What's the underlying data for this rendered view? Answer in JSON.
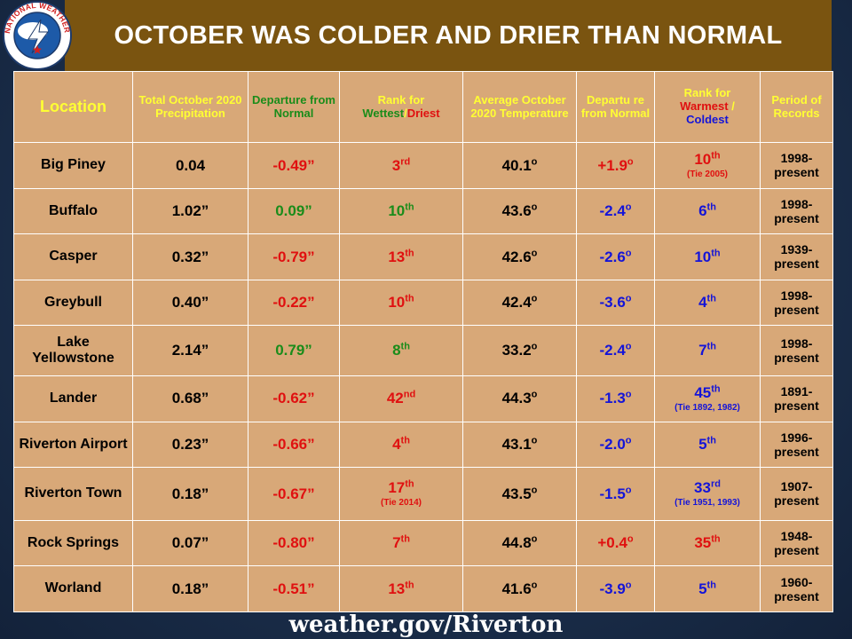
{
  "title": "OCTOBER WAS COLDER AND DRIER THAN NORMAL",
  "logo": {
    "icon": "nws-logo-icon",
    "ring_text": "NATIONAL WEATHER SERVICE",
    "colors": {
      "ring": "#ffffff",
      "inner": "#1d5aa8",
      "bolt": "#ffffff"
    }
  },
  "headers": {
    "location": "Location",
    "precip": "Total October 2020 Precipitation",
    "precip_departure": "Departure from Normal",
    "rank_precip_prefix": "Rank for",
    "rank_precip_wet": "Wettest",
    "rank_precip_sep": "/",
    "rank_precip_dry": "Driest",
    "avg_temp": "Average October 2020 Temperature",
    "temp_departure": "Departu re from Normal",
    "rank_temp_prefix": "Rank for",
    "rank_temp_warm": "Warmest",
    "rank_temp_sep": " /",
    "rank_temp_cold": "Coldest",
    "period": "Period of Records"
  },
  "rows": [
    {
      "location": "Big Piney",
      "precip": "0.04",
      "precip_dep": "-0.49”",
      "rp_num": "3",
      "rp_suf": "rd",
      "rp_tie": "",
      "temp": "40.1",
      "temp_dep": "+1.9",
      "rt_num": "10",
      "rt_suf": "th",
      "rt_tie": "(Tie 2005)",
      "period": "1998-present"
    },
    {
      "location": "Buffalo",
      "precip": "1.02”",
      "precip_dep": "0.09”",
      "rp_num": "10",
      "rp_suf": "th",
      "rp_tie": "",
      "temp": "43.6",
      "temp_dep": "-2.4",
      "rt_num": "6",
      "rt_suf": "th",
      "rt_tie": "",
      "period": "1998-present"
    },
    {
      "location": "Casper",
      "precip": "0.32”",
      "precip_dep": "-0.79”",
      "rp_num": "13",
      "rp_suf": "th",
      "rp_tie": "",
      "temp": "42.6",
      "temp_dep": "-2.6",
      "rt_num": "10",
      "rt_suf": "th",
      "rt_tie": "",
      "period": "1939-present"
    },
    {
      "location": "Greybull",
      "precip": "0.40”",
      "precip_dep": "-0.22”",
      "rp_num": "10",
      "rp_suf": "th",
      "rp_tie": "",
      "temp": "42.4",
      "temp_dep": "-3.6",
      "rt_num": "4",
      "rt_suf": "th",
      "rt_tie": "",
      "period": "1998-present"
    },
    {
      "location": "Lake Yellowstone",
      "precip": "2.14”",
      "precip_dep": "0.79”",
      "rp_num": "8",
      "rp_suf": "th",
      "rp_tie": "",
      "temp": "33.2",
      "temp_dep": "-2.4",
      "rt_num": "7",
      "rt_suf": "th",
      "rt_tie": "",
      "period": "1998-present"
    },
    {
      "location": "Lander",
      "precip": "0.68”",
      "precip_dep": "-0.62”",
      "rp_num": "42",
      "rp_suf": "nd",
      "rp_tie": "",
      "temp": "44.3",
      "temp_dep": "-1.3",
      "rt_num": "45",
      "rt_suf": "th",
      "rt_tie": "(Tie 1892, 1982)",
      "period": "1891-present"
    },
    {
      "location": "Riverton Airport",
      "precip": "0.23”",
      "precip_dep": "-0.66”",
      "rp_num": "4",
      "rp_suf": "th",
      "rp_tie": "",
      "temp": "43.1",
      "temp_dep": "-2.0",
      "rt_num": "5",
      "rt_suf": "th",
      "rt_tie": "",
      "period": "1996-present"
    },
    {
      "location": "Riverton Town",
      "precip": "0.18”",
      "precip_dep": "-0.67”",
      "rp_num": "17",
      "rp_suf": "th",
      "rp_tie": "(Tie 2014)",
      "temp": "43.5",
      "temp_dep": "-1.5",
      "rt_num": "33",
      "rt_suf": "rd",
      "rt_tie": "(Tie 1951, 1993)",
      "period": "1907-present"
    },
    {
      "location": "Rock Springs",
      "precip": "0.07”",
      "precip_dep": "-0.80”",
      "rp_num": "7",
      "rp_suf": "th",
      "rp_tie": "",
      "temp": "44.8",
      "temp_dep": "+0.4",
      "rt_num": "35",
      "rt_suf": "th",
      "rt_tie": "",
      "period": "1948-present"
    },
    {
      "location": "Worland",
      "precip": "0.18”",
      "precip_dep": "-0.51”",
      "rp_num": "13",
      "rp_suf": "th",
      "rp_tie": "",
      "temp": "41.6",
      "temp_dep": "-3.9",
      "rt_num": "5",
      "rt_suf": "th",
      "rt_tie": "",
      "period": "1960-present"
    }
  ],
  "degree_symbol": "o",
  "colors": {
    "red": "#e01010",
    "green": "#1a8c1a",
    "blue": "#1414d8",
    "header_yellow": "#ffff33",
    "banner": "#7a5410",
    "table": "#d8a878"
  },
  "footer": "weather.gov/Riverton"
}
